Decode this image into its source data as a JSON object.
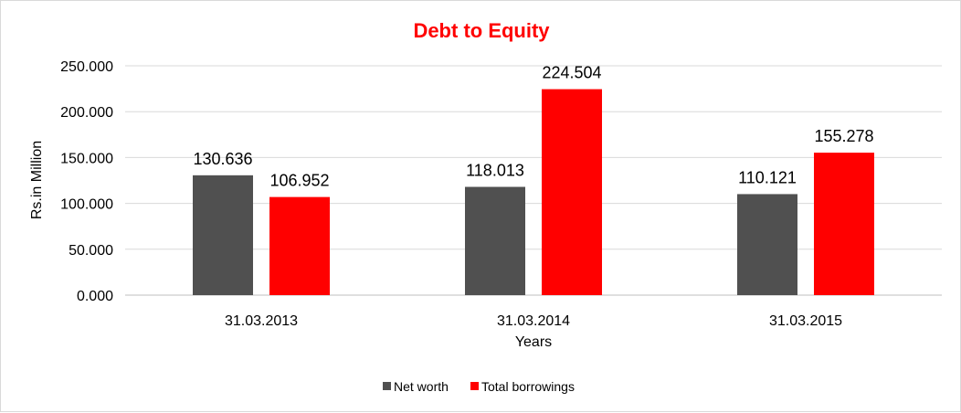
{
  "chart_data": {
    "type": "bar",
    "title": "Debt to Equity",
    "xlabel": "Years",
    "ylabel": "Rs.in Million",
    "categories": [
      "31.03.2013",
      "31.03.2014",
      "31.03.2015"
    ],
    "series": [
      {
        "name": "Net worth",
        "values": [
          130.636,
          118.013,
          110.121
        ],
        "color": "#505050"
      },
      {
        "name": "Total borrowings",
        "values": [
          106.952,
          224.504,
          155.278
        ],
        "color": "#ff0000"
      }
    ],
    "data_labels": [
      [
        "130.636",
        "118.013",
        "110.121"
      ],
      [
        "106.952",
        "224.504",
        "155.278"
      ]
    ],
    "ylim": [
      0,
      250
    ],
    "yticks": [
      0,
      50,
      100,
      150,
      200,
      250
    ],
    "ytick_labels": [
      "0.000",
      "50.000",
      "100.000",
      "150.000",
      "200.000",
      "250.000"
    ],
    "grid": true,
    "legend_position": "bottom",
    "title_color": "#ff0000"
  }
}
